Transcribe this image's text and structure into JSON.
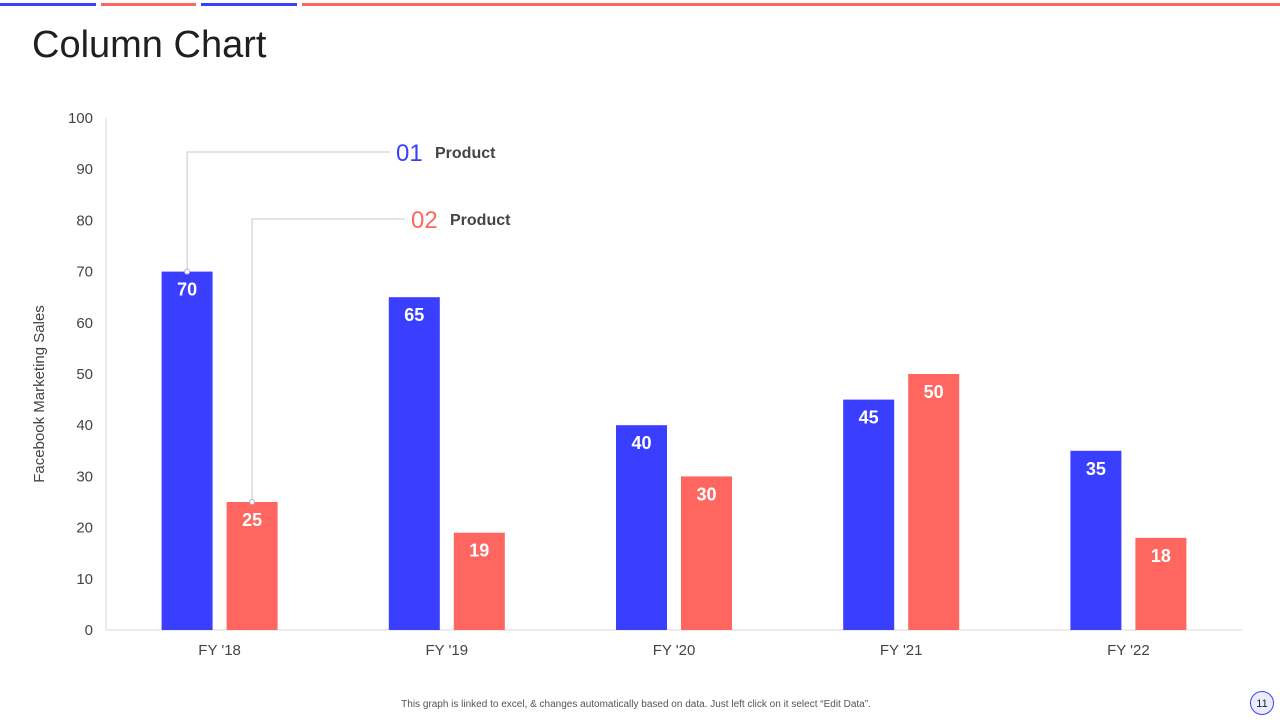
{
  "slide": {
    "title": "Column Chart",
    "footnote": "This graph is linked to excel, & changes automatically based on data. Just left click on it select “Edit Data”.",
    "page_number": "11"
  },
  "colors": {
    "series_1": "#3a3fff",
    "series_2": "#ff6660",
    "axis_text": "#444444",
    "gridline": "#d9d9d9"
  },
  "chart_data": {
    "type": "bar",
    "title": "",
    "xlabel": "",
    "ylabel": "Facebook Marketing Sales",
    "categories": [
      "FY '18",
      "FY '19",
      "FY '20",
      "FY '21",
      "FY '22"
    ],
    "series": [
      {
        "name": "Product",
        "marker": "01",
        "values": [
          70,
          65,
          40,
          45,
          35
        ]
      },
      {
        "name": "Product",
        "marker": "02",
        "values": [
          25,
          19,
          30,
          50,
          18
        ]
      }
    ],
    "ylim": [
      0,
      100
    ],
    "yticks": [
      0,
      10,
      20,
      30,
      40,
      50,
      60,
      70,
      80,
      90,
      100
    ],
    "data_labels": true,
    "grid": false,
    "legend": "callout lines top-left"
  }
}
